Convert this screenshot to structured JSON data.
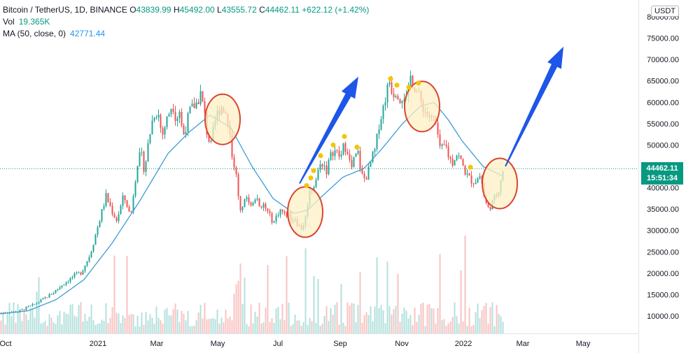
{
  "legend": {
    "symbol": "Bitcoin / TetherUS, 1D, BINANCE",
    "open_label": "O",
    "open": "43839.99",
    "high_label": "H",
    "high": "45492.00",
    "low_label": "L",
    "low": "43555.72",
    "close_label": "C",
    "close": "44462.11",
    "change": "+622.12 (+1.42%)",
    "vol_label": "Vol",
    "vol": "19.365K",
    "ma_label": "MA (50, close, 0)",
    "ma": "42771.44"
  },
  "currency": "USDT",
  "last_price": {
    "value": "44462.11",
    "countdown": "15:51:34"
  },
  "colors": {
    "up": "#26a69a",
    "down": "#ef5350",
    "ma": "#3e9bd6",
    "arrow": "#1e56e8",
    "circle_fill": "#fdf0c4",
    "circle_stroke": "#d94530",
    "dot": "#f7c300",
    "price_tag": "#089981"
  },
  "chart_data": {
    "type": "candlestick",
    "yticks": [
      "80000.00",
      "75000.00",
      "70000.00",
      "65000.00",
      "60000.00",
      "55000.00",
      "50000.00",
      "45000.00",
      "40000.00",
      "35000.00",
      "30000.00",
      "25000.00",
      "20000.00",
      "15000.00",
      "10000.00"
    ],
    "xticks": [
      "Oct",
      "2021",
      "Mar",
      "May",
      "Jul",
      "Sep",
      "Nov",
      "2022",
      "Mar",
      "May"
    ],
    "ylim": [
      5000,
      82000
    ],
    "price_path": [
      [
        0,
        10700
      ],
      [
        10,
        10900
      ],
      [
        25,
        11000
      ],
      [
        35,
        11800
      ],
      [
        45,
        12500
      ],
      [
        55,
        13400
      ],
      [
        65,
        14400
      ],
      [
        75,
        15500
      ],
      [
        85,
        17000
      ],
      [
        95,
        18200
      ],
      [
        105,
        19500
      ],
      [
        115,
        20200
      ],
      [
        120,
        22000
      ],
      [
        125,
        23500
      ],
      [
        130,
        26000
      ],
      [
        135,
        29000
      ],
      [
        140,
        32000
      ],
      [
        145,
        35000
      ],
      [
        150,
        38000
      ],
      [
        155,
        36000
      ],
      [
        160,
        34000
      ],
      [
        165,
        32500
      ],
      [
        170,
        35000
      ],
      [
        175,
        38000
      ],
      [
        180,
        36000
      ],
      [
        185,
        33000
      ],
      [
        190,
        40000
      ],
      [
        195,
        46000
      ],
      [
        200,
        48000
      ],
      [
        205,
        44000
      ],
      [
        210,
        50000
      ],
      [
        215,
        55000
      ],
      [
        220,
        58000
      ],
      [
        225,
        57000
      ],
      [
        230,
        52000
      ],
      [
        235,
        55000
      ],
      [
        240,
        57500
      ],
      [
        245,
        60000
      ],
      [
        250,
        56000
      ],
      [
        255,
        58000
      ],
      [
        260,
        52000
      ],
      [
        265,
        55000
      ],
      [
        270,
        58000
      ],
      [
        275,
        59000
      ],
      [
        280,
        60000
      ],
      [
        285,
        62000
      ],
      [
        290,
        58000
      ],
      [
        295,
        52000
      ],
      [
        300,
        50000
      ],
      [
        305,
        55000
      ],
      [
        310,
        58000
      ],
      [
        315,
        59000
      ],
      [
        320,
        58000
      ],
      [
        325,
        55000
      ],
      [
        330,
        48000
      ],
      [
        335,
        44000
      ],
      [
        340,
        36000
      ],
      [
        345,
        35000
      ],
      [
        350,
        38000
      ],
      [
        355,
        37000
      ],
      [
        360,
        36000
      ],
      [
        365,
        39000
      ],
      [
        370,
        34000
      ],
      [
        375,
        36000
      ],
      [
        380,
        34500
      ],
      [
        385,
        33000
      ],
      [
        390,
        32000
      ],
      [
        395,
        34000
      ],
      [
        400,
        35000
      ],
      [
        405,
        33500
      ],
      [
        410,
        34000
      ],
      [
        415,
        32500
      ],
      [
        420,
        33000
      ],
      [
        425,
        31000
      ],
      [
        430,
        30500
      ],
      [
        435,
        33000
      ],
      [
        440,
        39000
      ],
      [
        445,
        40000
      ],
      [
        450,
        42000
      ],
      [
        455,
        45000
      ],
      [
        460,
        46000
      ],
      [
        465,
        44000
      ],
      [
        470,
        47000
      ],
      [
        475,
        49000
      ],
      [
        480,
        48000
      ],
      [
        485,
        47000
      ],
      [
        490,
        50000
      ],
      [
        495,
        49000
      ],
      [
        500,
        44000
      ],
      [
        505,
        47000
      ],
      [
        510,
        48000
      ],
      [
        515,
        43000
      ],
      [
        520,
        42000
      ],
      [
        525,
        44000
      ],
      [
        530,
        47000
      ],
      [
        535,
        49000
      ],
      [
        540,
        55000
      ],
      [
        545,
        58000
      ],
      [
        550,
        62000
      ],
      [
        555,
        65000
      ],
      [
        560,
        62000
      ],
      [
        565,
        63000
      ],
      [
        570,
        61000
      ],
      [
        575,
        62000
      ],
      [
        580,
        60000
      ],
      [
        585,
        66000
      ],
      [
        590,
        64000
      ],
      [
        595,
        62000
      ],
      [
        600,
        60000
      ],
      [
        605,
        58000
      ],
      [
        610,
        57000
      ],
      [
        615,
        56000
      ],
      [
        620,
        56000
      ],
      [
        625,
        50000
      ],
      [
        630,
        49000
      ],
      [
        635,
        50000
      ],
      [
        640,
        47000
      ],
      [
        645,
        46000
      ],
      [
        650,
        48000
      ],
      [
        655,
        47000
      ],
      [
        660,
        45000
      ],
      [
        665,
        43000
      ],
      [
        670,
        42000
      ],
      [
        675,
        41500
      ],
      [
        680,
        42000
      ],
      [
        685,
        43000
      ],
      [
        690,
        38000
      ],
      [
        695,
        35000
      ],
      [
        700,
        36000
      ],
      [
        705,
        37500
      ],
      [
        710,
        39000
      ],
      [
        715,
        43000
      ],
      [
        718,
        44462
      ]
    ],
    "ma_path": [
      [
        0,
        10500
      ],
      [
        40,
        11200
      ],
      [
        80,
        13800
      ],
      [
        120,
        18500
      ],
      [
        160,
        27000
      ],
      [
        200,
        37000
      ],
      [
        240,
        48000
      ],
      [
        270,
        53000
      ],
      [
        300,
        57000
      ],
      [
        330,
        54000
      ],
      [
        360,
        45000
      ],
      [
        390,
        37500
      ],
      [
        420,
        34000
      ],
      [
        440,
        34800
      ],
      [
        460,
        38000
      ],
      [
        490,
        42500
      ],
      [
        520,
        44500
      ],
      [
        545,
        49000
      ],
      [
        575,
        55000
      ],
      [
        600,
        59000
      ],
      [
        620,
        60000
      ],
      [
        640,
        56000
      ],
      [
        660,
        51000
      ],
      [
        690,
        45000
      ],
      [
        718,
        42771
      ]
    ],
    "volume_max_px": 140,
    "annotations": {
      "circles": [
        {
          "date_x": 318,
          "price": 56000
        },
        {
          "date_x": 436,
          "price": 34300
        },
        {
          "date_x": 603,
          "price": 59000
        },
        {
          "date_x": 714,
          "price": 41000
        }
      ],
      "arrows": [
        {
          "from": [
            428,
            41000
          ],
          "to": [
            512,
            66000
          ]
        },
        {
          "from": [
            722,
            45000
          ],
          "to": [
            805,
            73000
          ]
        }
      ],
      "dots": [
        [
          438,
          40500
        ],
        [
          444,
          42300
        ],
        [
          448,
          44000
        ],
        [
          458,
          47500
        ],
        [
          476,
          50000
        ],
        [
          492,
          52000
        ],
        [
          510,
          49500
        ],
        [
          558,
          65500
        ],
        [
          567,
          64000
        ],
        [
          584,
          63500
        ],
        [
          598,
          64500
        ],
        [
          672,
          44800
        ]
      ]
    }
  }
}
